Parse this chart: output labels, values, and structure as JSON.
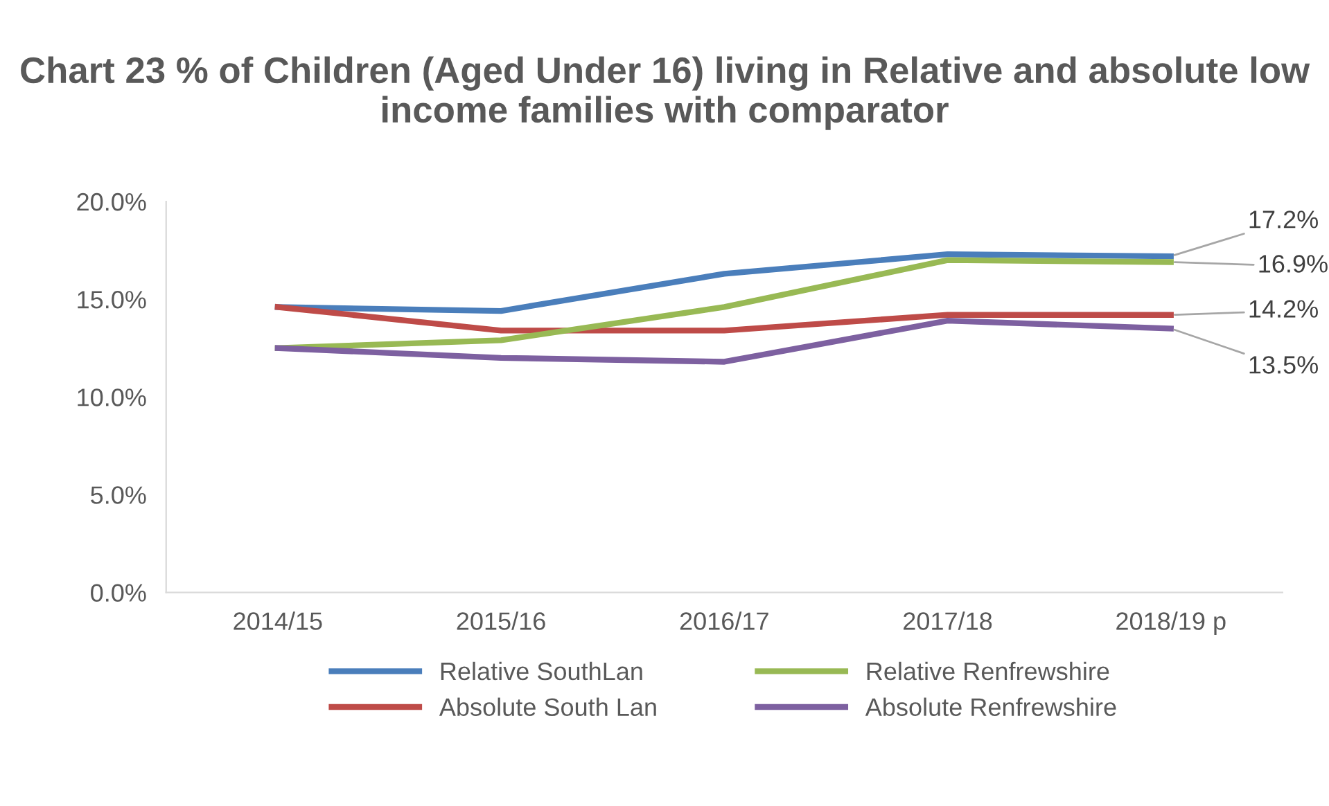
{
  "chart_data": {
    "type": "line",
    "title": "Chart 23 % of Children (Aged Under 16) living in Relative and absolute low income families with comparator",
    "categories": [
      "2014/15",
      "2015/16",
      "2016/17",
      "2017/18",
      "2018/19 p"
    ],
    "series": [
      {
        "name": "Relative SouthLan",
        "color": "#4a7ebb",
        "values": [
          14.6,
          14.4,
          16.3,
          17.3,
          17.2
        ],
        "value_labels": [
          null,
          null,
          null,
          null,
          "17.2%"
        ]
      },
      {
        "name": "Absolute South Lan",
        "color": "#be4b48",
        "values": [
          14.6,
          13.4,
          13.4,
          14.2,
          14.2
        ],
        "value_labels": [
          null,
          null,
          null,
          null,
          "14.2%"
        ]
      },
      {
        "name": "Relative Renfrewshire",
        "color": "#98b954",
        "values": [
          12.5,
          12.9,
          14.6,
          17.0,
          16.9
        ],
        "value_labels": [
          null,
          null,
          null,
          null,
          "16.9%"
        ]
      },
      {
        "name": "Absolute Renfrewshire",
        "color": "#7d60a0",
        "values": [
          12.5,
          12.0,
          11.8,
          13.9,
          13.5
        ],
        "value_labels": [
          null,
          null,
          null,
          null,
          "13.5%"
        ]
      }
    ],
    "ylim": [
      0,
      20
    ],
    "yticks": [
      {
        "value": 0,
        "label": "0.0%"
      },
      {
        "value": 5,
        "label": "5.0%"
      },
      {
        "value": 10,
        "label": "10.0%"
      },
      {
        "value": 15,
        "label": "15.0%"
      },
      {
        "value": 20,
        "label": "20.0%"
      }
    ],
    "grid": false,
    "legend": "bottom",
    "marker": "none",
    "line_style": "solid"
  }
}
